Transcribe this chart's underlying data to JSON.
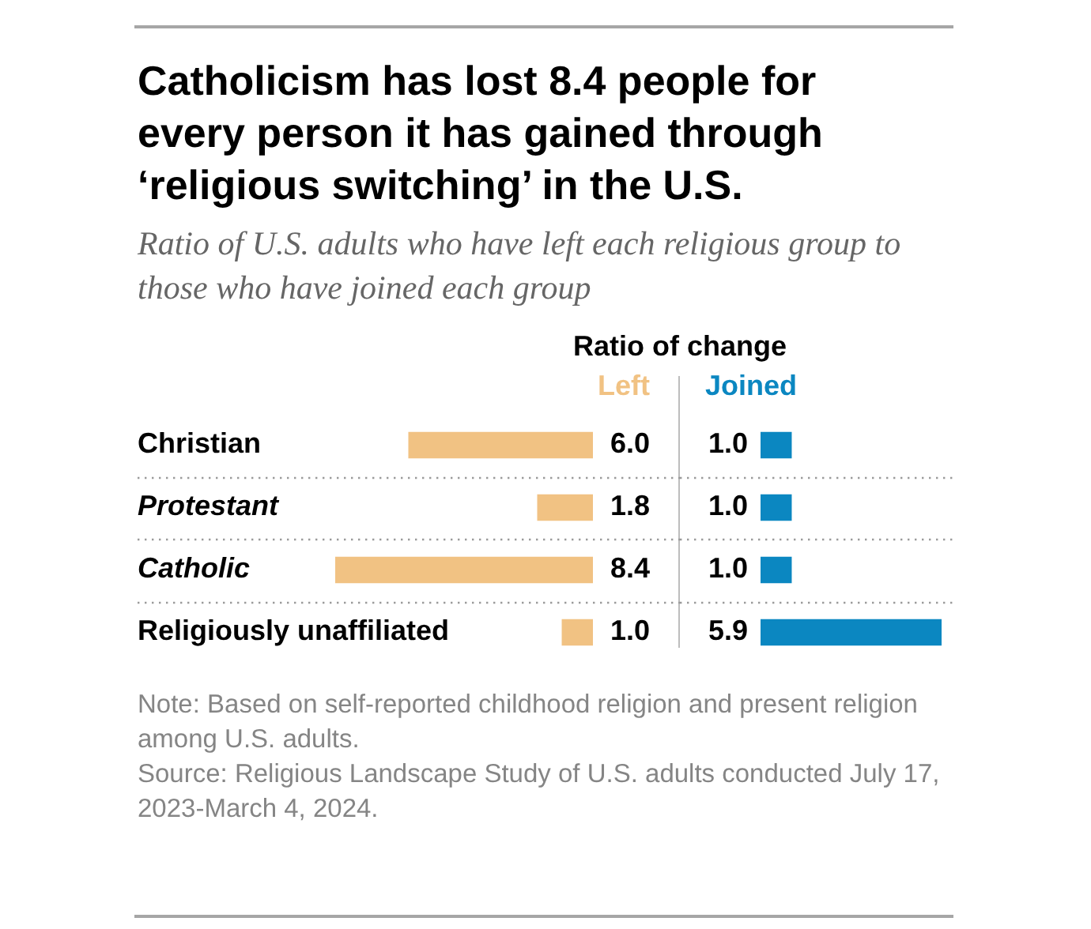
{
  "chart_data": [
    {
      "type": "bar",
      "orientation": "horizontal",
      "title": "Catholicism has lost 8.4 people for every person it has gained through ‘religious switching’ in the U.S.",
      "subtitle": "Ratio of U.S. adults who have left each religious group to those who have joined each group",
      "legend_title": "Ratio of change",
      "categories": [
        "Christian",
        "Protestant",
        "Catholic",
        "Religiously unaffiliated"
      ],
      "series": [
        {
          "name": "Left",
          "color": "#f1c283",
          "values": [
            6.0,
            1.8,
            8.4,
            1.0
          ],
          "value_labels": [
            "6.0",
            "1.8",
            "8.4",
            "1.0"
          ]
        }
      ],
      "legend": "top",
      "grid": "y",
      "annotations": [
        "Note: Based on self-reported childhood religion and present religion among U.S. adults.",
        "Source: Religious Landscape Study of U.S. adults conducted July 17, 2023-March 4, 2024."
      ]
    },
    {
      "type": "bar",
      "orientation": "horizontal",
      "categories": [
        null,
        null,
        null,
        null
      ],
      "series": [
        {
          "name": "Joined",
          "color": "#0b87c1",
          "values": [
            1.0,
            1.0,
            1.0,
            5.9
          ],
          "value_labels": [
            "1.0",
            "1.0",
            "1.0",
            "5.9"
          ]
        }
      ],
      "legend": "top",
      "grid": "y"
    }
  ]
}
